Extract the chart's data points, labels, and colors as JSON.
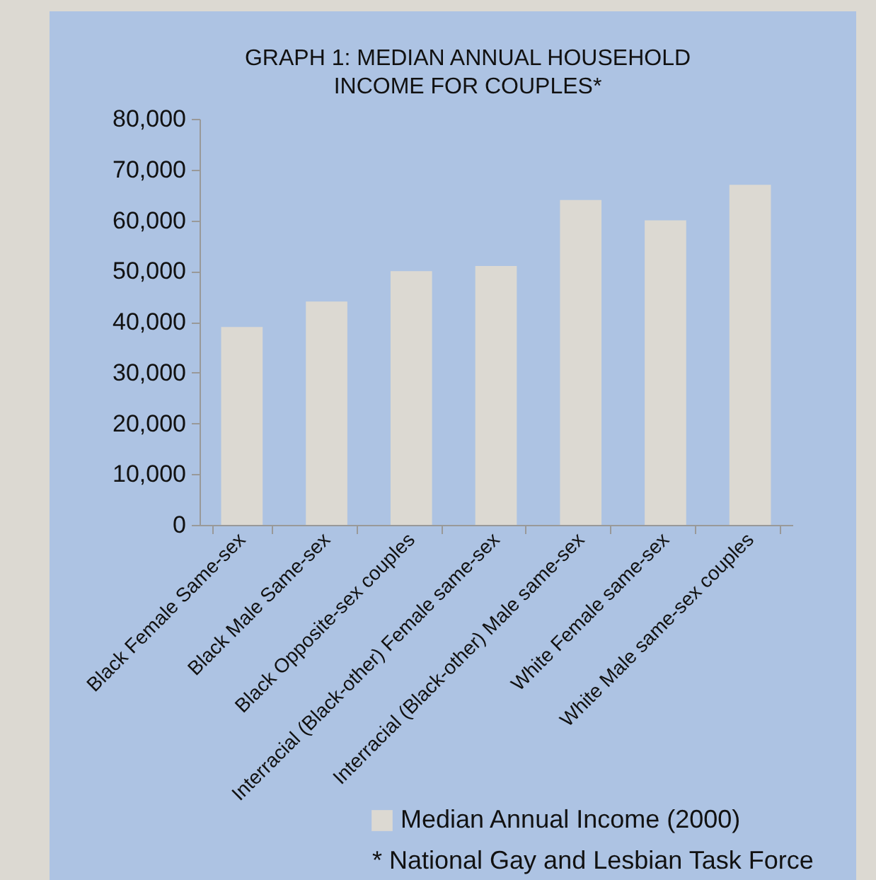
{
  "chart_data": {
    "type": "bar",
    "title": "GRAPH 1: MEDIAN ANNUAL HOUSEHOLD INCOME FOR COUPLES*",
    "categories": [
      "Black Female Same-sex",
      "Black Male Same-sex",
      "Black Opposite-sex couples",
      "Interracial (Black-other) Female same-sex",
      "Interracial (Black-other) Male same-sex",
      "White Female same-sex",
      "White Male same-sex couples"
    ],
    "series": [
      {
        "name": "Median Annual Income (2000)",
        "color": "#dcd9d2",
        "values": [
          39000,
          44000,
          50000,
          51000,
          64000,
          60000,
          67000
        ]
      }
    ],
    "ylim": [
      0,
      80000
    ],
    "yticks": [
      0,
      {
        "value": 10000,
        "label": "10,000"
      },
      {
        "value": 20000,
        "label": "20,000"
      },
      {
        "value": 30000,
        "label": "30,000"
      },
      {
        "value": 40000,
        "label": "40,000"
      },
      {
        "value": 50000,
        "label": "50,000"
      },
      {
        "value": 60000,
        "label": "60,000"
      },
      {
        "value": 70000,
        "label": "70,000"
      },
      {
        "value": 80000,
        "label": "80,000"
      }
    ],
    "grid": false,
    "legend": "bottom",
    "annotations": [
      "* National Gay and Lesbian Task Force"
    ]
  }
}
